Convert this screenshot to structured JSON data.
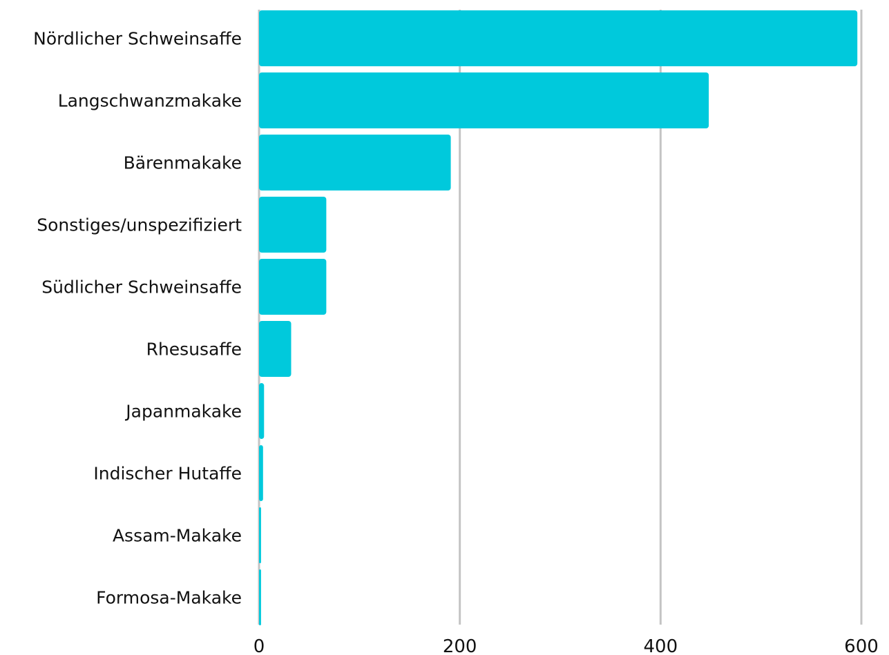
{
  "chart_data": {
    "type": "bar",
    "orientation": "horizontal",
    "categories": [
      "Nördlicher Schweinsaffe",
      "Langschwanzmakake",
      "Bärenmakake",
      "Sonstiges/unspezifiziert",
      "Südlicher Schweinsaffe",
      "Rhesusaffe",
      "Japanmakake",
      "Indischer Hutaffe",
      "Assam-Makake",
      "Formosa-Makake"
    ],
    "values": [
      596,
      448,
      191,
      67,
      67,
      32,
      5,
      4,
      2,
      2
    ],
    "xlim": [
      0,
      600
    ],
    "xticks": [
      "0",
      "200",
      "400",
      "600"
    ],
    "grid": true,
    "bar_color": "#00c9dc",
    "title": "",
    "xlabel": "",
    "ylabel": ""
  }
}
